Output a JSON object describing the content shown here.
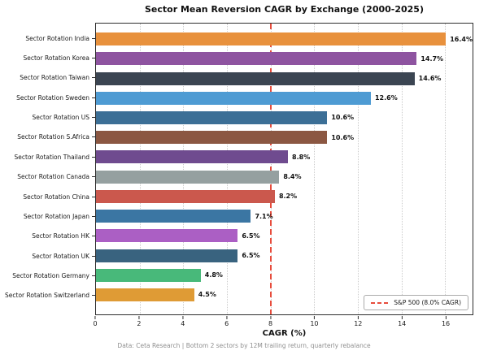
{
  "title": "Sector Mean Reversion CAGR by Exchange (2000-2025)",
  "footer": "Data: Ceta Research | Bottom 2 sectors by 12M trailing return, quarterly rebalance",
  "chart_data": {
    "type": "bar",
    "orientation": "horizontal",
    "title": "Sector Mean Reversion CAGR by Exchange (2000-2025)",
    "xlabel": "CAGR (%)",
    "xlim": [
      0,
      17.26
    ],
    "xticks": [
      0,
      2,
      4,
      6,
      8,
      10,
      12,
      14,
      16
    ],
    "grid": true,
    "categories": [
      "Sector Rotation India",
      "Sector Rotation Korea",
      "Sector Rotation Taiwan",
      "Sector Rotation Sweden",
      "Sector Rotation US",
      "Sector Rotation S.Africa",
      "Sector Rotation Thailand",
      "Sector Rotation Canada",
      "Sector Rotation China",
      "Sector Rotation Japan",
      "Sector Rotation HK",
      "Sector Rotation UK",
      "Sector Rotation Germany",
      "Sector Rotation Switzerland"
    ],
    "values": [
      16.4,
      14.7,
      14.6,
      12.6,
      10.6,
      10.6,
      8.8,
      8.4,
      8.2,
      7.1,
      6.5,
      6.5,
      4.8,
      4.5
    ],
    "value_labels": [
      "16.4%",
      "14.7%",
      "14.6%",
      "12.6%",
      "10.6%",
      "10.6%",
      "8.8%",
      "8.4%",
      "8.2%",
      "7.1%",
      "6.5%",
      "6.5%",
      "4.8%",
      "4.5%"
    ],
    "bar_colors": [
      "#e8913d",
      "#8e54a0",
      "#3b4552",
      "#4e9bd3",
      "#3c6f96",
      "#8b5742",
      "#6f4b8f",
      "#95a0a0",
      "#cb584d",
      "#3b76a3",
      "#ab5fc4",
      "#39637f",
      "#48b97a",
      "#df9b35"
    ],
    "reference_line": {
      "x": 8.0,
      "color": "#e74c3c",
      "style": "dashed"
    },
    "legend": {
      "position": "lower right",
      "entries": [
        {
          "label": "S&P 500 (8.0% CAGR)",
          "color": "#e74c3c",
          "style": "dashed"
        }
      ]
    }
  }
}
